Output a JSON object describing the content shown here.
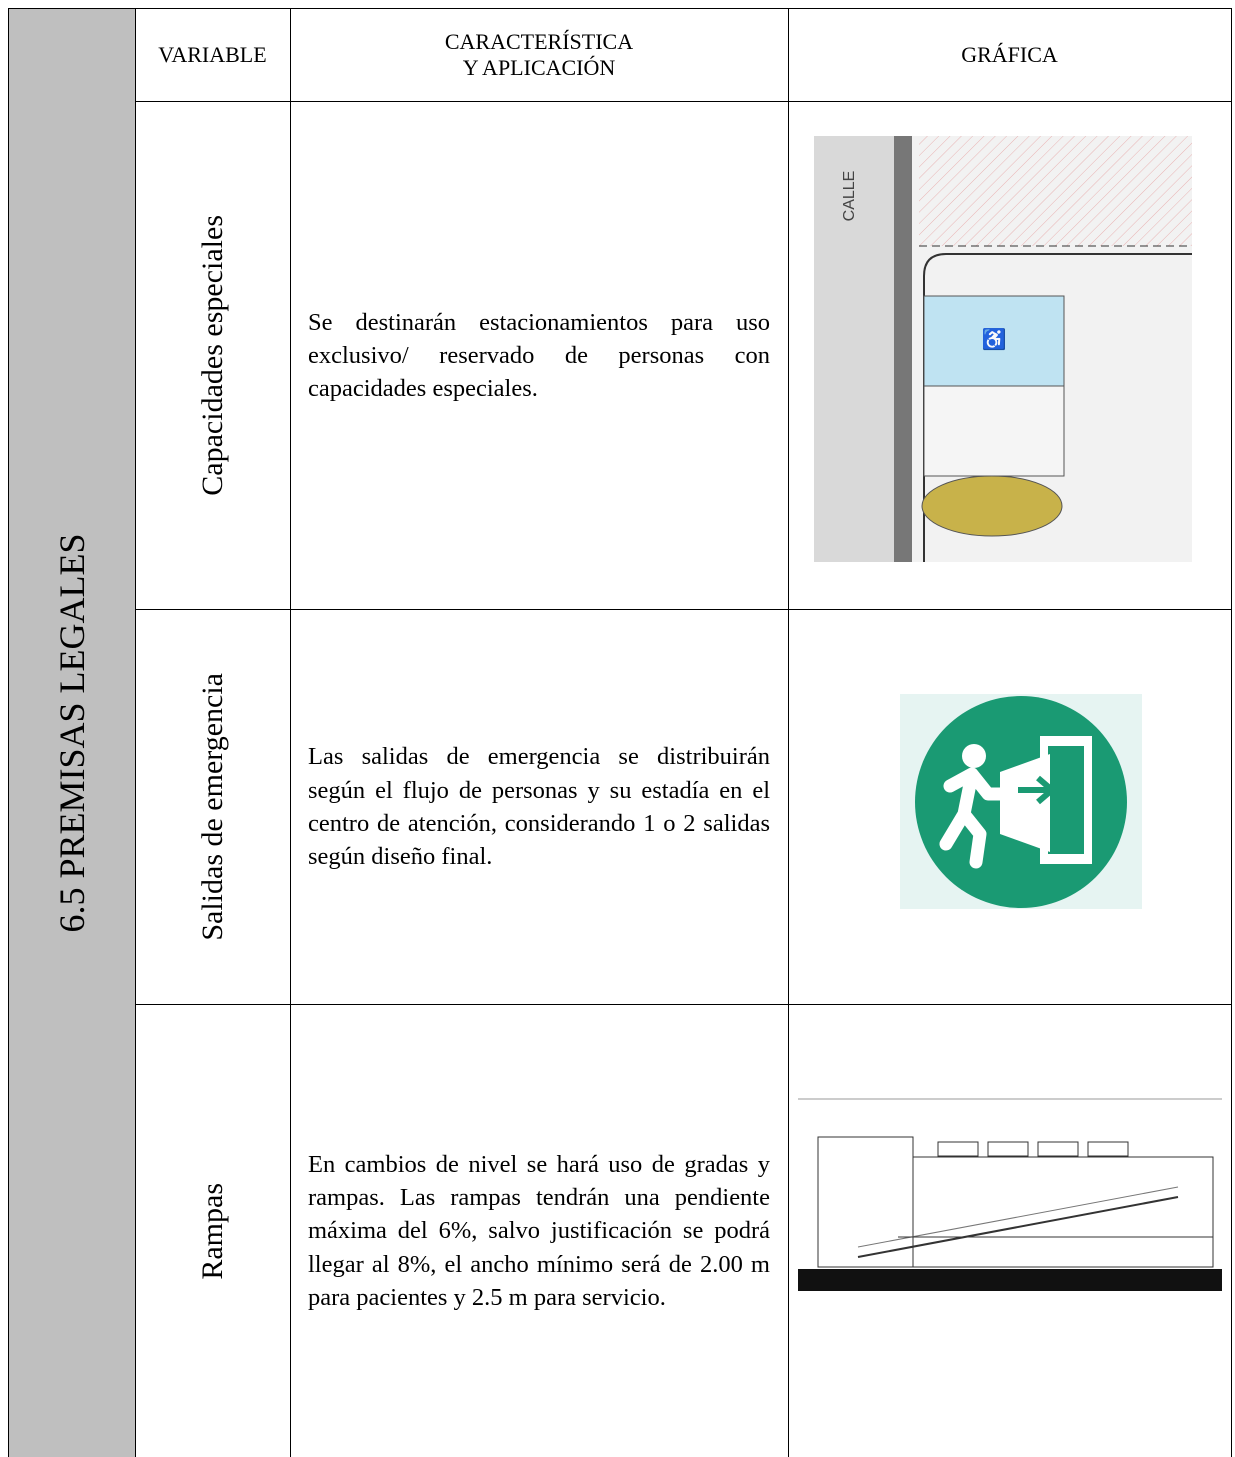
{
  "side_label": "6.5 PREMISAS LEGALES",
  "table": {
    "headers": [
      "VARIABLE",
      "CARACTERÍSTICA\nY APLICACIÓN",
      "GRÁFICA"
    ],
    "rows": [
      [
        "Capacidades especiales",
        "Se destinarán estacionamientos para uso exclusivo/ reservado de personas con capacidades especiales."
      ],
      [
        "Salidas de emergencia",
        "Las salidas de emergencia se distribuirán según el flujo de personas y su estadía en el centro de atención, considerando 1 o 2 salidas según diseño final."
      ],
      [
        "Rampas",
        "En cambios de nivel se hará uso de gradas y rampas. Las rampas tendrán una pendiente máxima del 6%, salvo justificación se podrá llegar al 8%, el ancho mínimo será de 2.00 m para pacientes y 2.5 m para servicio."
      ]
    ]
  },
  "figures": {
    "parking_plan": {
      "street_label": "CALLE"
    }
  }
}
